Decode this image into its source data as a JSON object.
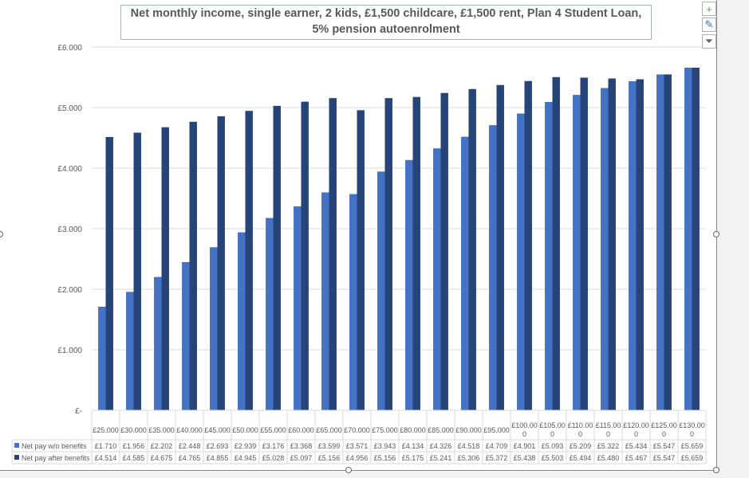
{
  "chart_data": {
    "type": "bar",
    "title": "Net monthly income, single earner, 2 kids,  £1,500 childcare, £1,500 rent, Plan 4 Student Loan, 5% pension autoenrolment",
    "categories": [
      "£25.000",
      "£30.000",
      "£35.000",
      "£40.000",
      "£45.000",
      "£50.000",
      "£55.000",
      "£60.000",
      "£65.000",
      "£70.000",
      "£75.000",
      "£80.000",
      "£85.000",
      "£90.000",
      "£95.000",
      "£100.000",
      "£105.000",
      "£110.000",
      "£115.000",
      "£120.000",
      "£125.000",
      "£130.000"
    ],
    "series": [
      {
        "name": "Net pay w/o benefits",
        "color": "#4472c4",
        "values": [
          1710,
          1956,
          2202,
          2448,
          2693,
          2939,
          3176,
          3368,
          3599,
          3571,
          3943,
          4134,
          4326,
          4518,
          4709,
          4901,
          5093,
          5209,
          5322,
          5434,
          5547,
          5659
        ],
        "labels": [
          "£1.710",
          "£1.956",
          "£2.202",
          "£2.448",
          "£2.693",
          "£2.939",
          "£3.176",
          "£3.368",
          "£3.599",
          "£3.571",
          "£3.943",
          "£4.134",
          "£4.326",
          "£4.518",
          "£4.709",
          "£4.901",
          "£5.093",
          "£5.209",
          "£5.322",
          "£5.434",
          "£5.547",
          "£5.659"
        ]
      },
      {
        "name": "Net pay after benefits",
        "color": "#264478",
        "values": [
          4514,
          4585,
          4675,
          4765,
          4855,
          4945,
          5028,
          5097,
          5156,
          4956,
          5156,
          5175,
          5241,
          5306,
          5372,
          5438,
          5503,
          5494,
          5480,
          5467,
          5547,
          5659
        ],
        "labels": [
          "£4.514",
          "£4.585",
          "£4.675",
          "£4.765",
          "£4.855",
          "£4.945",
          "£5.028",
          "£5.097",
          "£5.156",
          "£4.956",
          "£5.156",
          "£5.175",
          "£5.241",
          "£5.306",
          "£5.372",
          "£5.438",
          "£5.503",
          "£5.494",
          "£5.480",
          "£5.467",
          "£5.547",
          "£5.659"
        ]
      }
    ],
    "ylim": [
      0,
      6000
    ],
    "yticks": [
      0,
      1000,
      2000,
      3000,
      4000,
      5000,
      6000
    ],
    "ytick_labels": [
      "£-",
      "£1.000",
      "£2.000",
      "£3.000",
      "£4.000",
      "£5.000",
      "£6.000"
    ],
    "grid": true,
    "legend": "data-table"
  },
  "tools": {
    "add_icon": "plus-icon",
    "style_icon": "brush-icon",
    "filter_icon": "filter-icon"
  }
}
